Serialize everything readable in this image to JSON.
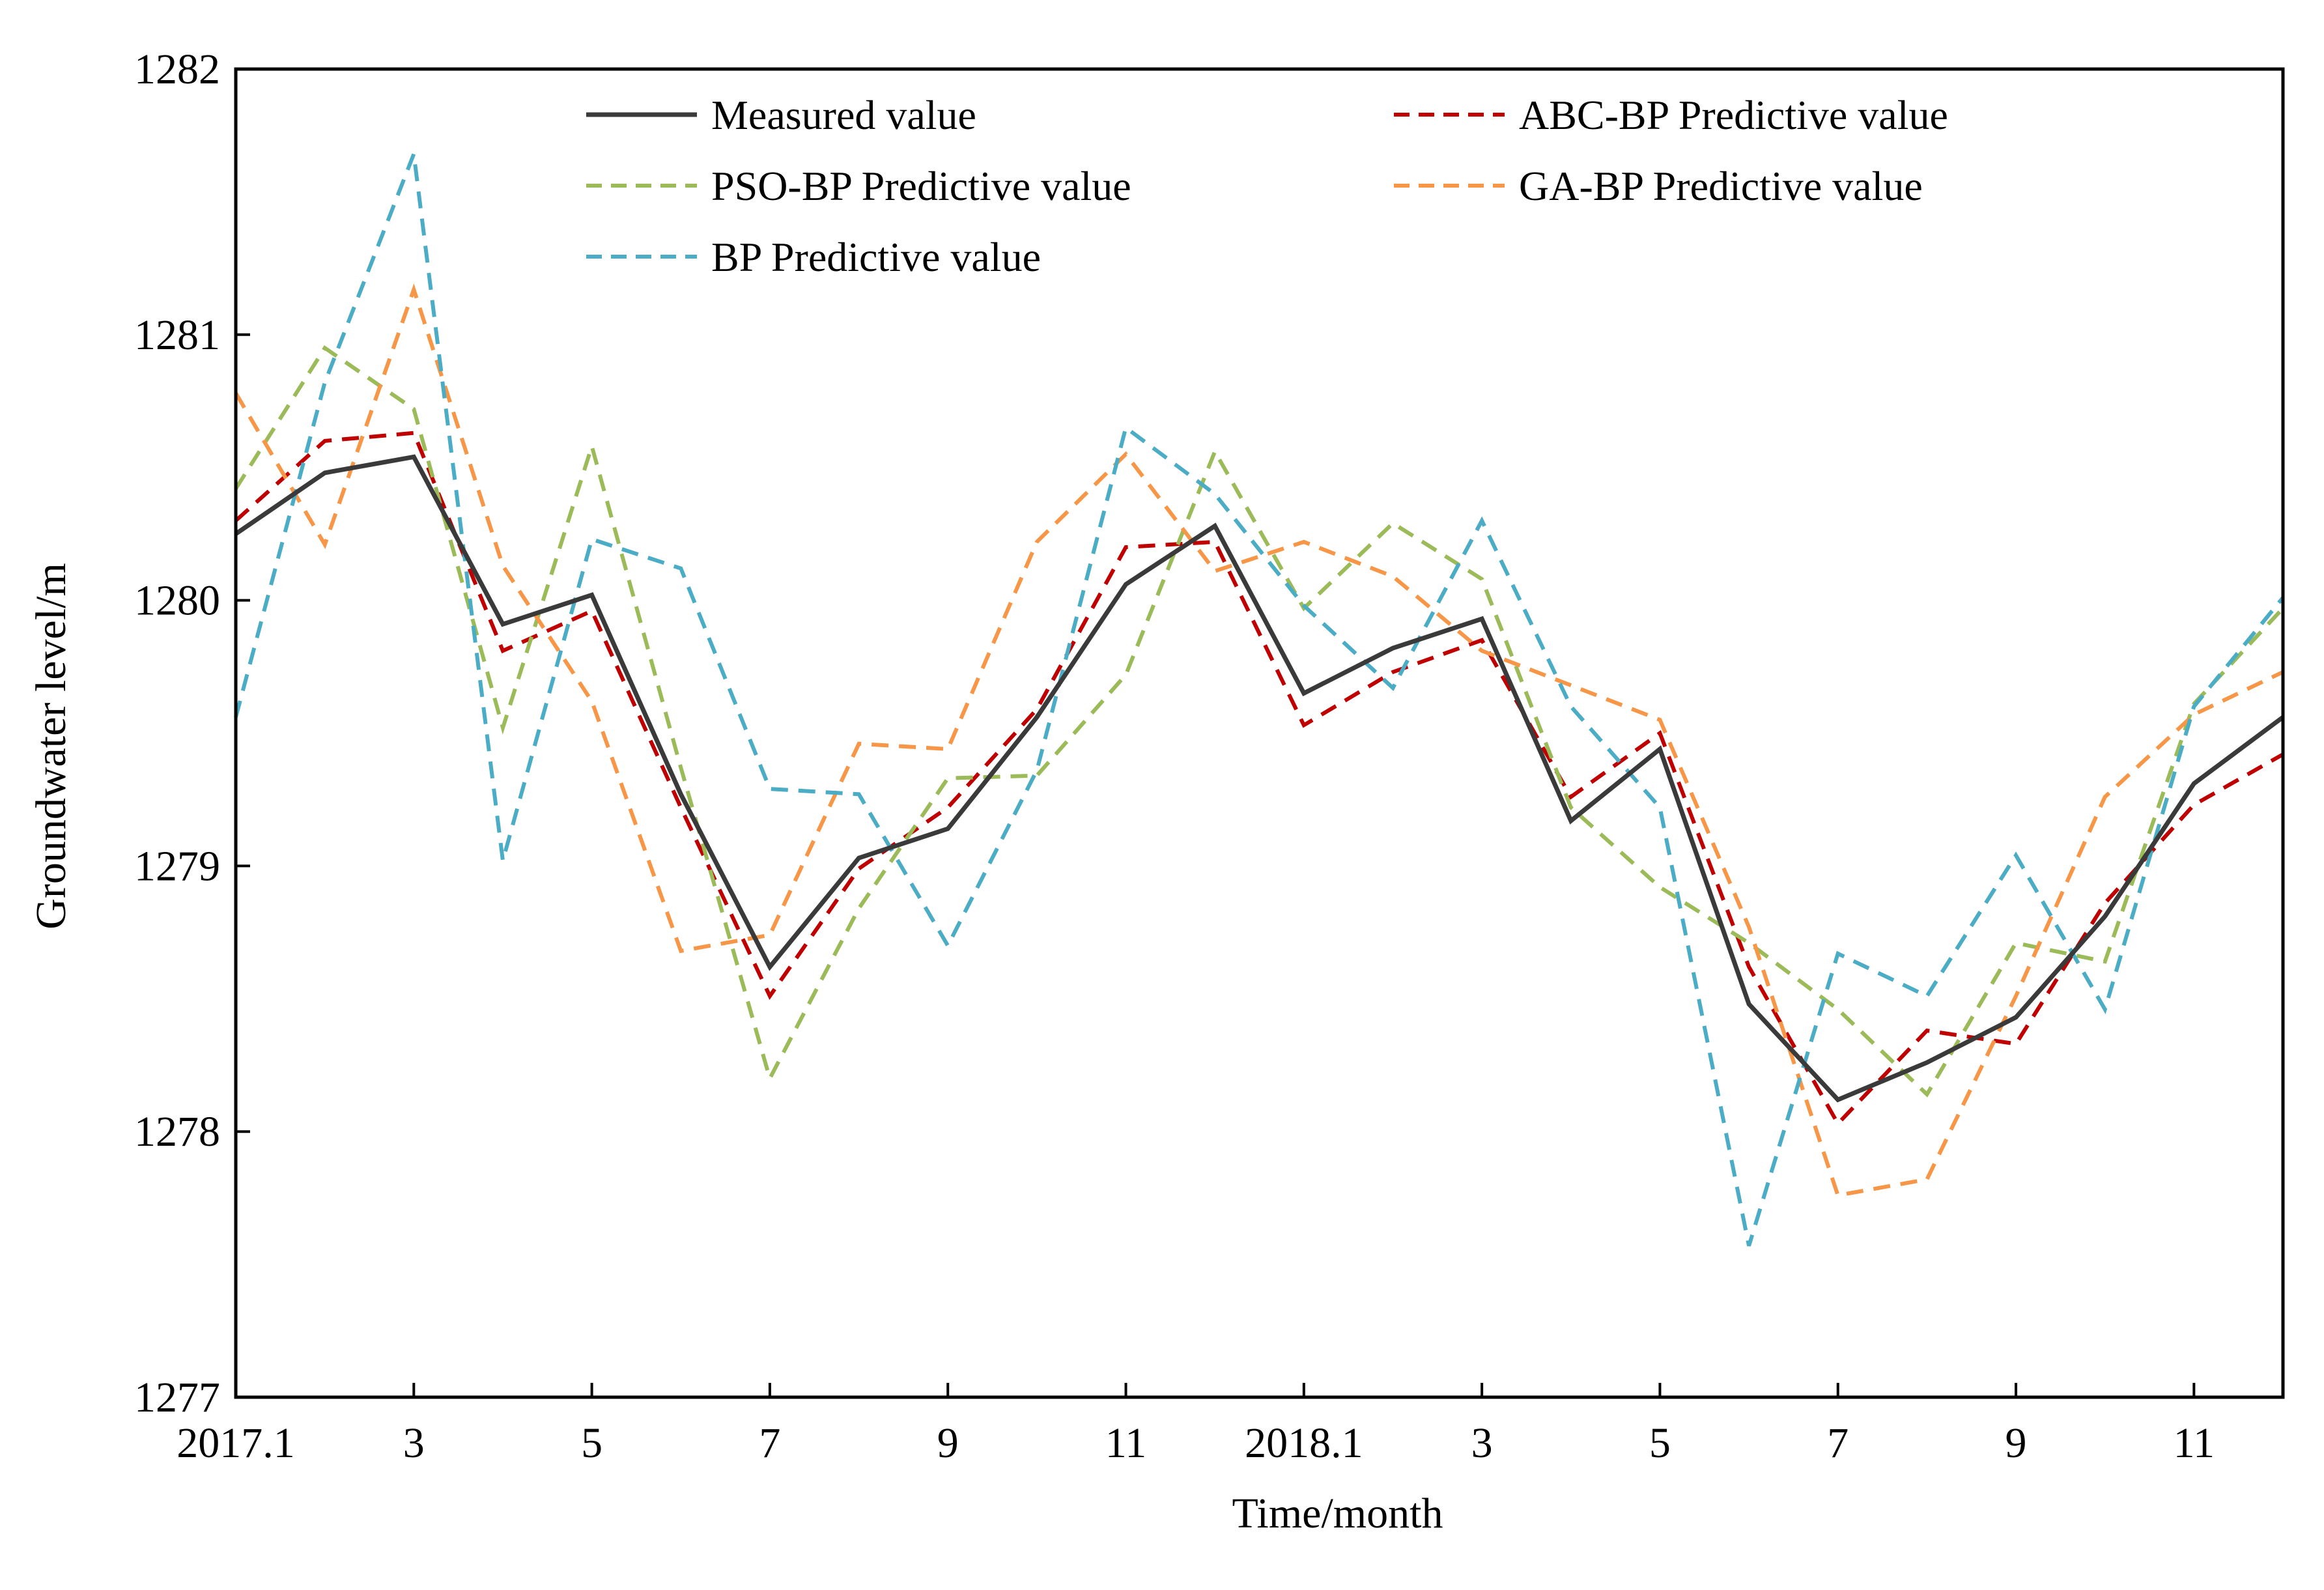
{
  "chart_data": {
    "type": "line",
    "title": "",
    "xlabel": "Time/month",
    "ylabel": "Groundwater level/m",
    "ylim": [
      1277,
      1282
    ],
    "yticks": [
      "1277",
      "1278",
      "1279",
      "1280",
      "1281",
      "1282"
    ],
    "xtick_labels": [
      {
        "index": 0,
        "label": "2017.1"
      },
      {
        "index": 2,
        "label": "3"
      },
      {
        "index": 4,
        "label": "5"
      },
      {
        "index": 6,
        "label": "7"
      },
      {
        "index": 8,
        "label": "9"
      },
      {
        "index": 10,
        "label": "11"
      },
      {
        "index": 12,
        "label": "2018.1"
      },
      {
        "index": 14,
        "label": "3"
      },
      {
        "index": 16,
        "label": "5"
      },
      {
        "index": 18,
        "label": "7"
      },
      {
        "index": 20,
        "label": "9"
      },
      {
        "index": 22,
        "label": "11"
      }
    ],
    "x": [
      "2017.1",
      "2017.2",
      "2017.3",
      "2017.4",
      "2017.5",
      "2017.6",
      "2017.7",
      "2017.8",
      "2017.9",
      "2017.10",
      "2017.11",
      "2017.12",
      "2018.1",
      "2018.2",
      "2018.3",
      "2018.4",
      "2018.5",
      "2018.6",
      "2018.7",
      "2018.8",
      "2018.9",
      "2018.10",
      "2018.11",
      "2018.12"
    ],
    "grid": false,
    "legend_position": "top",
    "series": [
      {
        "name": "Measured value",
        "color": "#3a3a3a",
        "dash": "solid",
        "values": [
          1280.25,
          1280.48,
          1280.54,
          1279.91,
          1280.02,
          1279.27,
          1278.62,
          1279.03,
          1279.14,
          1279.56,
          1280.06,
          1280.28,
          1279.65,
          1279.82,
          1279.93,
          1279.17,
          1279.44,
          1278.48,
          1278.12,
          1278.26,
          1278.43,
          1278.81,
          1279.31,
          1279.56
        ]
      },
      {
        "name": "ABC-BP Predictive value",
        "color": "#c00000",
        "dash": "dashed",
        "values": [
          1280.3,
          1280.6,
          1280.63,
          1279.81,
          1279.96,
          1279.22,
          1278.51,
          1278.99,
          1279.22,
          1279.59,
          1280.2,
          1280.22,
          1279.53,
          1279.73,
          1279.85,
          1279.26,
          1279.5,
          1278.62,
          1278.03,
          1278.38,
          1278.33,
          1278.86,
          1279.23,
          1279.42
        ]
      },
      {
        "name": "PSO-BP Predictive value",
        "color": "#9bbb59",
        "dash": "dashed",
        "values": [
          1280.42,
          1280.95,
          1280.72,
          1279.52,
          1280.58,
          1279.37,
          1278.2,
          1278.84,
          1279.33,
          1279.34,
          1279.72,
          1280.56,
          1279.97,
          1280.29,
          1280.08,
          1279.22,
          1278.92,
          1278.71,
          1278.46,
          1278.14,
          1278.71,
          1278.64,
          1279.61,
          1279.97
        ]
      },
      {
        "name": "GA-BP Predictive value",
        "color": "#f79646",
        "dash": "dashed",
        "values": [
          1280.78,
          1280.21,
          1281.17,
          1280.13,
          1279.62,
          1278.68,
          1278.74,
          1279.46,
          1279.44,
          1280.22,
          1280.55,
          1280.11,
          1280.22,
          1280.09,
          1279.81,
          1279.68,
          1279.55,
          1278.77,
          1277.76,
          1277.82,
          1278.51,
          1279.26,
          1279.57,
          1279.73
        ]
      },
      {
        "name": "BP Predictive value",
        "color": "#4bacc6",
        "dash": "dashed",
        "values": [
          1279.56,
          1280.82,
          1281.68,
          1279.02,
          1280.23,
          1280.12,
          1279.29,
          1279.27,
          1278.7,
          1279.36,
          1280.65,
          1280.4,
          1279.98,
          1279.67,
          1280.3,
          1279.6,
          1279.22,
          1277.57,
          1278.67,
          1278.51,
          1279.04,
          1278.46,
          1279.6,
          1280.01
        ]
      }
    ]
  }
}
